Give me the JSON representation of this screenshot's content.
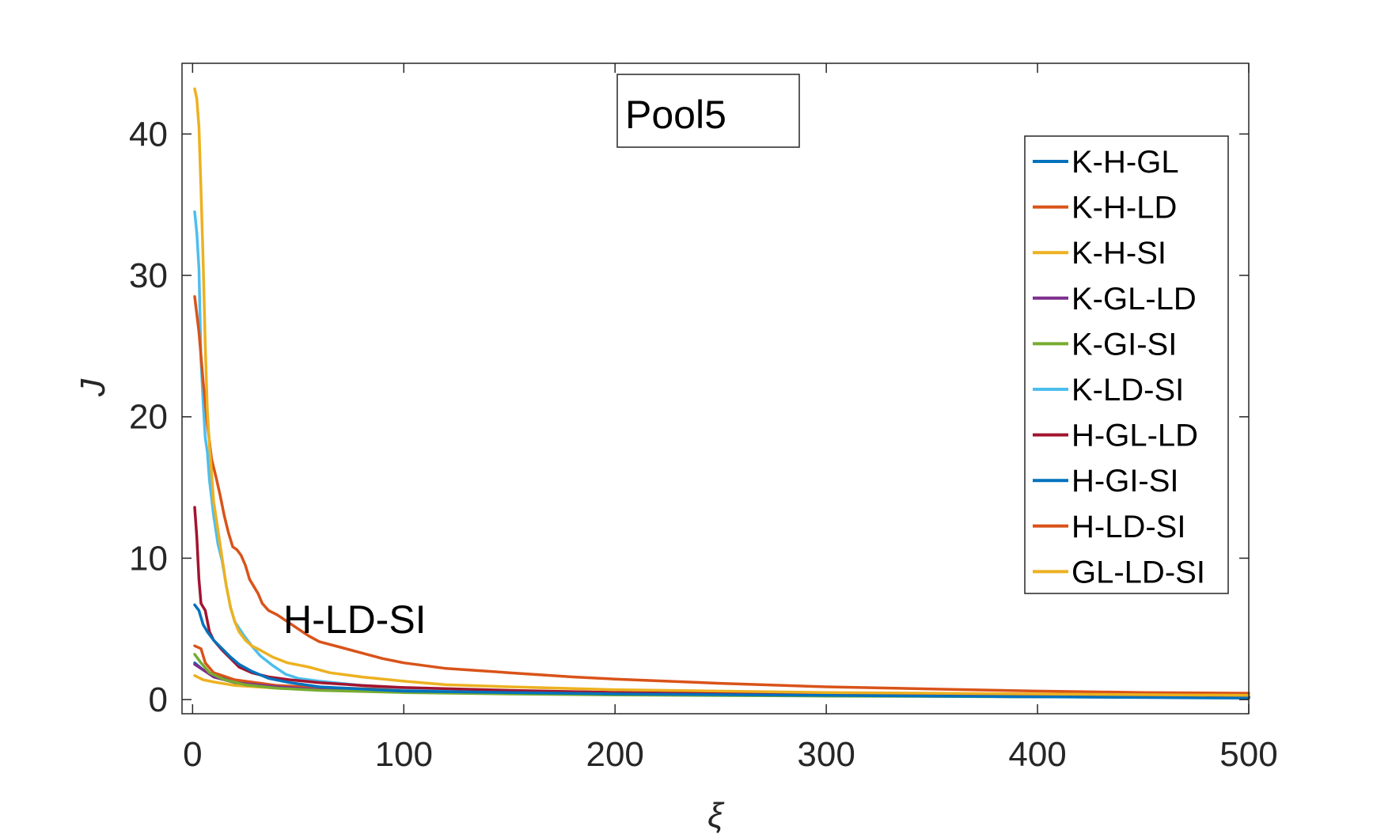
{
  "chart_data": {
    "type": "line",
    "title": "Pool5",
    "xlabel": "ξ",
    "ylabel": "J",
    "xlim": [
      -5,
      500
    ],
    "ylim": [
      -1,
      45
    ],
    "xticks": [
      0,
      100,
      200,
      300,
      400,
      500
    ],
    "yticks": [
      0,
      10,
      20,
      30,
      40
    ],
    "x_tick_labels": [
      "0",
      "100",
      "200",
      "300",
      "400",
      "500"
    ],
    "y_tick_labels": [
      "0",
      "10",
      "20",
      "30",
      "40"
    ],
    "grid": false,
    "legend_position": "top-right",
    "annotation": "H-LD-SI",
    "series": [
      {
        "name": "K-H-GL",
        "color": "#0072bd",
        "points": [
          [
            1,
            2.6
          ],
          [
            5,
            2.1
          ],
          [
            10,
            1.7
          ],
          [
            20,
            1.3
          ],
          [
            40,
            0.9
          ],
          [
            60,
            0.75
          ],
          [
            100,
            0.55
          ],
          [
            150,
            0.45
          ],
          [
            200,
            0.38
          ],
          [
            300,
            0.28
          ],
          [
            400,
            0.2
          ],
          [
            500,
            0.15
          ]
        ]
      },
      {
        "name": "K-H-LD",
        "color": "#d95319",
        "points": [
          [
            1,
            3.8
          ],
          [
            4,
            3.6
          ],
          [
            6,
            2.6
          ],
          [
            10,
            1.9
          ],
          [
            20,
            1.4
          ],
          [
            40,
            1.0
          ],
          [
            60,
            0.85
          ],
          [
            100,
            0.7
          ],
          [
            150,
            0.6
          ],
          [
            200,
            0.5
          ],
          [
            300,
            0.4
          ],
          [
            400,
            0.3
          ],
          [
            500,
            0.25
          ]
        ]
      },
      {
        "name": "K-H-SI",
        "color": "#edb120",
        "points": [
          [
            1,
            1.7
          ],
          [
            5,
            1.4
          ],
          [
            10,
            1.25
          ],
          [
            20,
            1.0
          ],
          [
            40,
            0.8
          ],
          [
            60,
            0.7
          ],
          [
            100,
            0.55
          ],
          [
            150,
            0.45
          ],
          [
            200,
            0.38
          ],
          [
            300,
            0.3
          ],
          [
            400,
            0.25
          ],
          [
            500,
            0.2
          ]
        ]
      },
      {
        "name": "K-GL-LD",
        "color": "#7e2f8e",
        "points": [
          [
            1,
            2.5
          ],
          [
            5,
            2.1
          ],
          [
            10,
            1.6
          ],
          [
            20,
            1.2
          ],
          [
            40,
            0.9
          ],
          [
            60,
            0.7
          ],
          [
            100,
            0.55
          ],
          [
            150,
            0.45
          ],
          [
            200,
            0.38
          ],
          [
            300,
            0.28
          ],
          [
            400,
            0.22
          ],
          [
            500,
            0.18
          ]
        ]
      },
      {
        "name": "K-GI-SI",
        "color": "#77ac30",
        "points": [
          [
            1,
            3.2
          ],
          [
            4,
            2.6
          ],
          [
            8,
            1.9
          ],
          [
            15,
            1.4
          ],
          [
            25,
            1.05
          ],
          [
            40,
            0.8
          ],
          [
            60,
            0.65
          ],
          [
            100,
            0.5
          ],
          [
            150,
            0.4
          ],
          [
            200,
            0.33
          ],
          [
            300,
            0.25
          ],
          [
            400,
            0.2
          ],
          [
            500,
            0.15
          ]
        ]
      },
      {
        "name": "K-LD-SI",
        "color": "#4dbeee",
        "points": [
          [
            1,
            34.5
          ],
          [
            2,
            33.0
          ],
          [
            3,
            30.5
          ],
          [
            4,
            24.0
          ],
          [
            5,
            21.0
          ],
          [
            6,
            18.5
          ],
          [
            7,
            17.5
          ],
          [
            8,
            15.5
          ],
          [
            10,
            13.0
          ],
          [
            12,
            11.0
          ],
          [
            14,
            9.8
          ],
          [
            16,
            8.0
          ],
          [
            18,
            6.5
          ],
          [
            20,
            5.5
          ],
          [
            24,
            4.6
          ],
          [
            28,
            3.8
          ],
          [
            32,
            3.1
          ],
          [
            38,
            2.4
          ],
          [
            44,
            1.8
          ],
          [
            50,
            1.5
          ],
          [
            60,
            1.3
          ],
          [
            80,
            1.0
          ],
          [
            100,
            0.8
          ],
          [
            150,
            0.6
          ],
          [
            200,
            0.5
          ],
          [
            300,
            0.35
          ],
          [
            400,
            0.28
          ],
          [
            500,
            0.22
          ]
        ]
      },
      {
        "name": "H-GL-LD",
        "color": "#a2142f",
        "points": [
          [
            1,
            13.6
          ],
          [
            2,
            11.5
          ],
          [
            3,
            8.5
          ],
          [
            4,
            6.8
          ],
          [
            6,
            6.3
          ],
          [
            8,
            4.8
          ],
          [
            10,
            4.2
          ],
          [
            14,
            3.5
          ],
          [
            18,
            2.9
          ],
          [
            22,
            2.3
          ],
          [
            28,
            1.9
          ],
          [
            36,
            1.6
          ],
          [
            46,
            1.4
          ],
          [
            60,
            1.2
          ],
          [
            80,
            1.0
          ],
          [
            100,
            0.85
          ],
          [
            150,
            0.65
          ],
          [
            200,
            0.5
          ],
          [
            300,
            0.35
          ],
          [
            400,
            0.25
          ],
          [
            500,
            0.18
          ]
        ]
      },
      {
        "name": "H-GI-SI",
        "color": "#0072bd",
        "points": [
          [
            1,
            6.7
          ],
          [
            3,
            6.3
          ],
          [
            5,
            5.3
          ],
          [
            7,
            4.8
          ],
          [
            10,
            4.2
          ],
          [
            14,
            3.6
          ],
          [
            18,
            3.0
          ],
          [
            22,
            2.5
          ],
          [
            28,
            2.0
          ],
          [
            36,
            1.5
          ],
          [
            46,
            1.2
          ],
          [
            60,
            0.9
          ],
          [
            80,
            0.75
          ],
          [
            100,
            0.6
          ],
          [
            150,
            0.5
          ],
          [
            200,
            0.4
          ],
          [
            300,
            0.3
          ],
          [
            400,
            0.2
          ],
          [
            500,
            0.1
          ]
        ]
      },
      {
        "name": "H-LD-SI",
        "color": "#d95319",
        "points": [
          [
            1,
            28.5
          ],
          [
            3,
            26.0
          ],
          [
            5,
            22.5
          ],
          [
            7,
            19.5
          ],
          [
            9,
            17.0
          ],
          [
            11,
            15.8
          ],
          [
            13,
            14.5
          ],
          [
            15,
            13.0
          ],
          [
            17,
            11.8
          ],
          [
            19,
            10.8
          ],
          [
            21,
            10.6
          ],
          [
            23,
            10.2
          ],
          [
            25,
            9.5
          ],
          [
            27,
            8.5
          ],
          [
            29,
            8.0
          ],
          [
            31,
            7.5
          ],
          [
            33,
            6.8
          ],
          [
            36,
            6.3
          ],
          [
            40,
            6.0
          ],
          [
            45,
            5.5
          ],
          [
            50,
            5.0
          ],
          [
            55,
            4.5
          ],
          [
            60,
            4.1
          ],
          [
            70,
            3.7
          ],
          [
            80,
            3.3
          ],
          [
            90,
            2.9
          ],
          [
            100,
            2.6
          ],
          [
            120,
            2.2
          ],
          [
            150,
            1.9
          ],
          [
            180,
            1.6
          ],
          [
            200,
            1.45
          ],
          [
            250,
            1.15
          ],
          [
            300,
            0.9
          ],
          [
            350,
            0.75
          ],
          [
            400,
            0.6
          ],
          [
            450,
            0.5
          ],
          [
            500,
            0.45
          ]
        ]
      },
      {
        "name": "GL-LD-SI",
        "color": "#edb120",
        "points": [
          [
            1,
            43.2
          ],
          [
            2,
            42.5
          ],
          [
            3,
            40.5
          ],
          [
            4,
            36.0
          ],
          [
            5,
            31.0
          ],
          [
            6,
            25.0
          ],
          [
            7,
            20.5
          ],
          [
            8,
            18.0
          ],
          [
            9,
            16.0
          ],
          [
            10,
            14.0
          ],
          [
            12,
            12.0
          ],
          [
            14,
            10.0
          ],
          [
            16,
            8.0
          ],
          [
            18,
            6.5
          ],
          [
            20,
            5.5
          ],
          [
            22,
            4.8
          ],
          [
            25,
            4.2
          ],
          [
            28,
            3.8
          ],
          [
            32,
            3.5
          ],
          [
            38,
            3.0
          ],
          [
            45,
            2.6
          ],
          [
            55,
            2.3
          ],
          [
            65,
            1.9
          ],
          [
            80,
            1.6
          ],
          [
            100,
            1.3
          ],
          [
            120,
            1.05
          ],
          [
            150,
            0.9
          ],
          [
            200,
            0.7
          ],
          [
            300,
            0.5
          ],
          [
            400,
            0.4
          ],
          [
            500,
            0.3
          ]
        ]
      }
    ]
  }
}
